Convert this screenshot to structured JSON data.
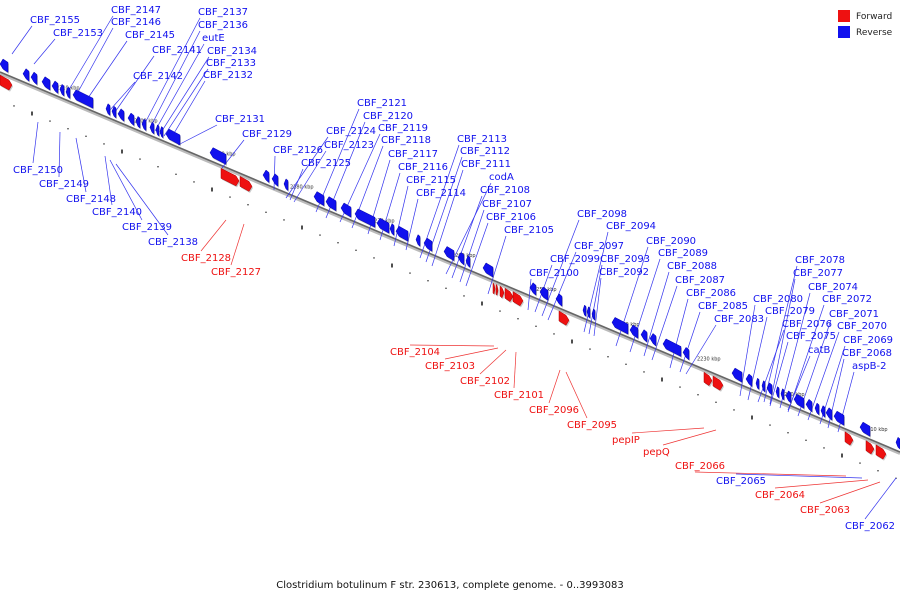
{
  "caption": "Clostridium botulinum F str. 230613, complete genome. - 0..3993083",
  "legend": [
    {
      "label": "Forward",
      "color": "#ee1111"
    },
    {
      "label": "Reverse",
      "color": "#1111ee"
    }
  ],
  "ticks": [
    "2310 kbp",
    "2300 kbp",
    "2290 kbp",
    "2280 kbp",
    "2270 kbp",
    "2260 kbp",
    "2250 kbp",
    "2240 kbp",
    "2230 kbp",
    "2220 kbp",
    "2210 kbp"
  ],
  "genes_reverse": [
    "CBF_2155",
    "CBF_2153",
    "CBF_2147",
    "CBF_2146",
    "CBF_2145",
    "CBF_2137",
    "CBF_2136",
    "eutE",
    "CBF_2141",
    "CBF_2134",
    "CBF_2133",
    "CBF_2142",
    "CBF_2132",
    "CBF_2131",
    "CBF_2129",
    "CBF_2150",
    "CBF_2149",
    "CBF_2148",
    "CBF_2140",
    "CBF_2139",
    "CBF_2138",
    "CBF_2121",
    "CBF_2120",
    "CBF_2124",
    "CBF_2119",
    "CBF_2123",
    "CBF_2118",
    "CBF_2126",
    "CBF_2117",
    "CBF_2125",
    "CBF_2116",
    "CBF_2115",
    "CBF_2114",
    "CBF_2113",
    "CBF_2112",
    "CBF_2111",
    "codA",
    "CBF_2108",
    "CBF_2107",
    "CBF_2106",
    "CBF_2105",
    "CBF_2098",
    "CBF_2094",
    "CBF_2097",
    "CBF_2099",
    "CBF_2093",
    "CBF_2100",
    "CBF_2092",
    "CBF_2090",
    "CBF_2089",
    "CBF_2088",
    "CBF_2087",
    "CBF_2086",
    "CBF_2085",
    "CBF_2083",
    "CBF_2078",
    "CBF_2077",
    "CBF_2074",
    "CBF_2080",
    "CBF_2072",
    "CBF_2079",
    "CBF_2071",
    "CBF_2076",
    "CBF_2070",
    "CBF_2075",
    "CBF_2069",
    "catB",
    "CBF_2068",
    "aspB-2",
    "CBF_2065",
    "CBF_2062"
  ],
  "genes_forward": [
    "CBF_2128",
    "CBF_2127",
    "CBF_2104",
    "CBF_2103",
    "CBF_2102",
    "CBF_2101",
    "CBF_2096",
    "CBF_2095",
    "pepIP",
    "pepQ",
    "CBF_2066",
    "CBF_2064",
    "CBF_2063"
  ]
}
